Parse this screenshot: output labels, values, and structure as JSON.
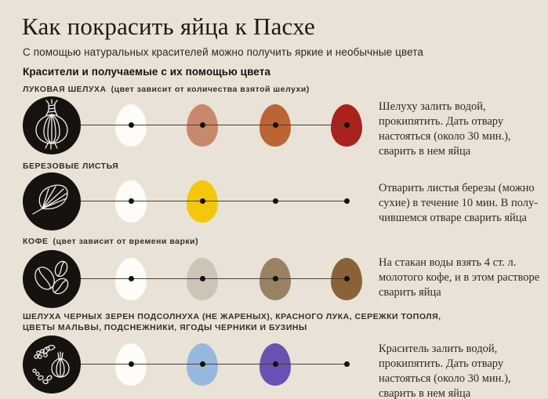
{
  "page": {
    "background_color": "#e9e2d6",
    "icon_circle_color": "#16120f",
    "line_color": "#46413c",
    "dot_color": "#14110e"
  },
  "header": {
    "title": "Как покрасить яйца к Пасхе",
    "subtitle": "С помощью натуральных красителей можно получить яркие и необычные цвета",
    "section_header": "Красители и получаемые с их помощью цвета"
  },
  "rows": [
    {
      "name": "ЛУКОВАЯ ШЕЛУХА",
      "note": "(цвет зависит от количества взятой шелухи)",
      "icon": "onion-icon",
      "swatches": [
        {
          "kind": "egg",
          "color": "#fdfcf8"
        },
        {
          "kind": "egg",
          "color": "#c8886b"
        },
        {
          "kind": "egg",
          "color": "#bd6434"
        },
        {
          "kind": "egg",
          "color": "#a8231e"
        }
      ],
      "instructions": [
        "Шелуху залить водой,",
        "прокипятить. Дать отвару",
        "настояться (около 30 мин.),",
        "сварить в нем яйца"
      ]
    },
    {
      "name": "БЕРЕЗОВЫЕ ЛИСТЬЯ",
      "note": "",
      "icon": "birch-leaf-icon",
      "swatches": [
        {
          "kind": "egg",
          "color": "#fdfcf8"
        },
        {
          "kind": "egg",
          "color": "#f3c80b"
        },
        {
          "kind": "dot"
        },
        {
          "kind": "dot"
        }
      ],
      "instructions": [
        "Отварить листья березы (можно",
        "сухие) в течение 10 мин. В полу-",
        "чившемся отваре сварить яйца"
      ]
    },
    {
      "name": "КОФЕ",
      "note": "(цвет зависит от времени варки)",
      "icon": "coffee-beans-icon",
      "swatches": [
        {
          "kind": "egg",
          "color": "#fdfcf8"
        },
        {
          "kind": "egg",
          "color": "#cdc3b7"
        },
        {
          "kind": "egg",
          "color": "#9b8164"
        },
        {
          "kind": "egg",
          "color": "#8a6239"
        }
      ],
      "instructions": [
        "На стакан воды взять 4 ст. л.",
        "молотого кофе, и в этом растворе",
        "сварить яйца"
      ]
    },
    {
      "name": [
        "ШЕЛУХА ЧЕРНЫХ ЗЕРЕН ПОДСОЛНУХА (НЕ ЖАРЕНЫХ), КРАСНОГО ЛУКА, СЕРЕЖКИ ТОПОЛЯ,",
        "ЦВЕТЫ МАЛЬВЫ, ПОДСНЕЖНИКИ, ЯГОДЫ ЧЕРНИКИ И БУЗИНЫ"
      ],
      "note": "",
      "icon": "mixed-natural-dyes-icon",
      "swatches": [
        {
          "kind": "egg",
          "color": "#fdfcf8"
        },
        {
          "kind": "egg",
          "color": "#95b9de"
        },
        {
          "kind": "egg",
          "color": "#6a51b3"
        },
        {
          "kind": "dot"
        }
      ],
      "instructions": [
        "Краситель залить водой,",
        "прокипятить. Дать отвару",
        "настояться (около 30 мин.),",
        "сварить в нем яйца"
      ]
    }
  ]
}
